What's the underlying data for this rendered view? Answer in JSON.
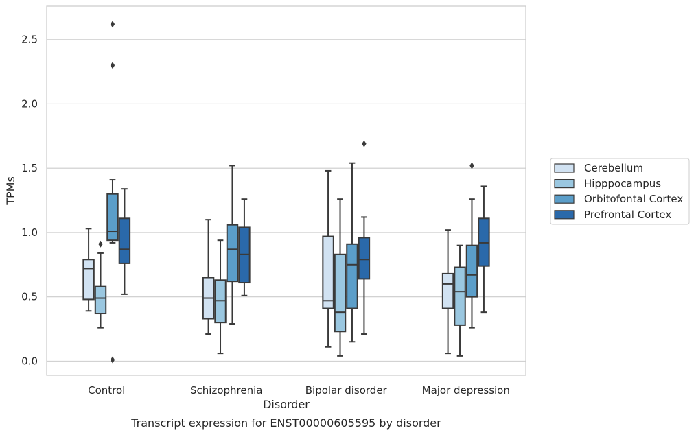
{
  "chart_data": {
    "type": "box",
    "title": "",
    "xlabel": "Disorder",
    "ylabel": "TPMs",
    "caption": "Transcript expression for ENST00000605595 by disorder",
    "ylim": [
      -0.11,
      2.76
    ],
    "yticks": [
      0.0,
      0.5,
      1.0,
      1.5,
      2.0,
      2.5
    ],
    "ytick_labels": [
      "0.0",
      "0.5",
      "1.0",
      "1.5",
      "2.0",
      "2.5"
    ],
    "grid": "horizontal",
    "legend_position": "right",
    "categories": [
      "Control",
      "Schizophrenia",
      "Bipolar disorder",
      "Major depression"
    ],
    "series": [
      {
        "name": "Cerebellum",
        "color": "#d1e2f2",
        "boxes": [
          {
            "whislo": 0.39,
            "q1": 0.48,
            "med": 0.72,
            "q3": 0.79,
            "whishi": 1.03,
            "fliers": []
          },
          {
            "whislo": 0.21,
            "q1": 0.33,
            "med": 0.49,
            "q3": 0.65,
            "whishi": 1.1,
            "fliers": []
          },
          {
            "whislo": 0.11,
            "q1": 0.41,
            "med": 0.47,
            "q3": 0.97,
            "whishi": 1.48,
            "fliers": []
          },
          {
            "whislo": 0.06,
            "q1": 0.41,
            "med": 0.6,
            "q3": 0.68,
            "whishi": 1.02,
            "fliers": []
          }
        ]
      },
      {
        "name": "Hipppocampus",
        "color": "#9ac7e0",
        "boxes": [
          {
            "whislo": 0.26,
            "q1": 0.37,
            "med": 0.49,
            "q3": 0.58,
            "whishi": 0.84,
            "fliers": [
              0.91
            ]
          },
          {
            "whislo": 0.06,
            "q1": 0.3,
            "med": 0.47,
            "q3": 0.63,
            "whishi": 0.94,
            "fliers": []
          },
          {
            "whislo": 0.04,
            "q1": 0.23,
            "med": 0.38,
            "q3": 0.83,
            "whishi": 1.26,
            "fliers": []
          },
          {
            "whislo": 0.04,
            "q1": 0.28,
            "med": 0.54,
            "q3": 0.73,
            "whishi": 0.9,
            "fliers": []
          }
        ]
      },
      {
        "name": "Orbitofontal Cortex",
        "color": "#5b9ec9",
        "boxes": [
          {
            "whislo": 0.92,
            "q1": 0.94,
            "med": 1.01,
            "q3": 1.3,
            "whishi": 1.41,
            "fliers": [
              2.3,
              2.62,
              0.01
            ]
          },
          {
            "whislo": 0.29,
            "q1": 0.62,
            "med": 0.87,
            "q3": 1.06,
            "whishi": 1.52,
            "fliers": []
          },
          {
            "whislo": 0.15,
            "q1": 0.41,
            "med": 0.75,
            "q3": 0.91,
            "whishi": 1.54,
            "fliers": []
          },
          {
            "whislo": 0.26,
            "q1": 0.5,
            "med": 0.67,
            "q3": 0.9,
            "whishi": 1.26,
            "fliers": [
              1.52
            ]
          }
        ]
      },
      {
        "name": "Prefrontal Cortex",
        "color": "#2a69aa",
        "boxes": [
          {
            "whislo": 0.52,
            "q1": 0.76,
            "med": 0.87,
            "q3": 1.11,
            "whishi": 1.34,
            "fliers": []
          },
          {
            "whislo": 0.51,
            "q1": 0.61,
            "med": 0.83,
            "q3": 1.04,
            "whishi": 1.26,
            "fliers": []
          },
          {
            "whislo": 0.21,
            "q1": 0.64,
            "med": 0.79,
            "q3": 0.96,
            "whishi": 1.12,
            "fliers": [
              1.69
            ]
          },
          {
            "whislo": 0.38,
            "q1": 0.74,
            "med": 0.92,
            "q3": 1.11,
            "whishi": 1.36,
            "fliers": []
          }
        ]
      }
    ]
  }
}
